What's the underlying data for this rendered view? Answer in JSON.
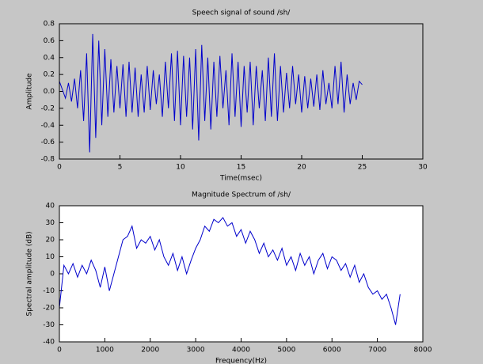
{
  "chart_data": [
    {
      "type": "line",
      "title": "Speech signal of sound /sh/",
      "x_label": "Time(msec)",
      "y_label": "Amplitude",
      "background": "#c6c6c6",
      "xlim": [
        0,
        30
      ],
      "xticks": [
        0,
        5,
        10,
        15,
        20,
        25,
        30
      ],
      "ylim": [
        -0.8,
        0.8
      ],
      "yticks": [
        -0.8,
        -0.6,
        -0.4,
        -0.2,
        {
          "value": 0,
          "label": "0.0"
        },
        0.2,
        0.4,
        0.6,
        0.8
      ],
      "x": [
        0,
        0.25,
        0.5,
        0.75,
        1,
        1.25,
        1.5,
        1.75,
        2,
        2.25,
        2.5,
        2.75,
        3,
        3.25,
        3.5,
        3.75,
        4,
        4.25,
        4.5,
        4.75,
        5,
        5.25,
        5.5,
        5.75,
        6,
        6.25,
        6.5,
        6.75,
        7,
        7.25,
        7.5,
        7.75,
        8,
        8.25,
        8.5,
        8.75,
        9,
        9.25,
        9.5,
        9.75,
        10,
        10.25,
        10.5,
        10.75,
        11,
        11.25,
        11.5,
        11.75,
        12,
        12.25,
        12.5,
        12.75,
        13,
        13.25,
        13.5,
        13.75,
        14,
        14.25,
        14.5,
        14.75,
        15,
        15.25,
        15.5,
        15.75,
        16,
        16.25,
        16.5,
        16.75,
        17,
        17.25,
        17.5,
        17.75,
        18,
        18.25,
        18.5,
        18.75,
        19,
        19.25,
        19.5,
        19.75,
        20,
        20.25,
        20.5,
        20.75,
        21,
        21.25,
        21.5,
        21.75,
        22,
        22.25,
        22.5,
        22.75,
        23,
        23.25,
        23.5,
        23.75,
        24,
        24.25,
        24.5,
        24.75,
        25
      ],
      "series": [
        {
          "color": "#0000cc",
          "values": [
            0.12,
            0.02,
            -0.08,
            0.1,
            -0.12,
            0.15,
            -0.2,
            0.25,
            -0.35,
            0.45,
            -0.72,
            0.68,
            -0.55,
            0.6,
            -0.4,
            0.5,
            -0.3,
            0.38,
            -0.25,
            0.3,
            -0.2,
            0.32,
            -0.3,
            0.35,
            -0.25,
            0.28,
            -0.3,
            0.2,
            -0.25,
            0.3,
            -0.22,
            0.25,
            -0.15,
            0.2,
            -0.3,
            0.35,
            -0.2,
            0.45,
            -0.35,
            0.48,
            -0.4,
            0.42,
            -0.3,
            0.4,
            -0.45,
            0.5,
            -0.58,
            0.55,
            -0.35,
            0.4,
            -0.45,
            0.35,
            -0.3,
            0.42,
            -0.2,
            0.25,
            -0.4,
            0.45,
            -0.3,
            0.35,
            -0.42,
            0.3,
            -0.25,
            0.35,
            -0.4,
            0.3,
            -0.2,
            0.25,
            -0.35,
            0.4,
            -0.3,
            0.45,
            -0.35,
            0.3,
            -0.25,
            0.22,
            -0.2,
            0.3,
            -0.15,
            0.2,
            -0.25,
            0.18,
            -0.2,
            0.15,
            -0.18,
            0.2,
            -0.22,
            0.25,
            -0.15,
            0.1,
            -0.2,
            0.3,
            -0.15,
            0.35,
            -0.25,
            0.2,
            -0.15,
            0.1,
            -0.1,
            0.12,
            0.08
          ]
        }
      ]
    },
    {
      "type": "line",
      "title": "Magnitude Spectrum of /sh/",
      "x_label": "Frequency(Hz)",
      "y_label": "Spectral amplitude (dB)",
      "background": "#ffffff",
      "xlim": [
        0,
        8000
      ],
      "xticks": [
        0,
        1000,
        2000,
        3000,
        4000,
        5000,
        6000,
        7000,
        8000
      ],
      "ylim": [
        -40,
        40
      ],
      "yticks": [
        -40,
        -30,
        -20,
        -10,
        0,
        10,
        20,
        30,
        40
      ],
      "x": [
        0,
        100,
        200,
        300,
        400,
        500,
        600,
        700,
        800,
        900,
        1000,
        1100,
        1200,
        1300,
        1400,
        1500,
        1600,
        1700,
        1800,
        1900,
        2000,
        2100,
        2200,
        2300,
        2400,
        2500,
        2600,
        2700,
        2800,
        2900,
        3000,
        3100,
        3200,
        3300,
        3400,
        3500,
        3600,
        3700,
        3800,
        3900,
        4000,
        4100,
        4200,
        4300,
        4400,
        4500,
        4600,
        4700,
        4800,
        4900,
        5000,
        5100,
        5200,
        5300,
        5400,
        5500,
        5600,
        5700,
        5800,
        5900,
        6000,
        6100,
        6200,
        6300,
        6400,
        6500,
        6600,
        6700,
        6800,
        6900,
        7000,
        7100,
        7200,
        7300,
        7400,
        7500
      ],
      "series": [
        {
          "color": "#0000cc",
          "values": [
            -20,
            5,
            0,
            6,
            -2,
            5,
            0,
            8,
            2,
            -8,
            4,
            -10,
            0,
            10,
            20,
            22,
            28,
            15,
            20,
            18,
            22,
            14,
            20,
            10,
            5,
            12,
            2,
            10,
            0,
            8,
            15,
            20,
            28,
            25,
            32,
            30,
            33,
            28,
            30,
            22,
            26,
            18,
            25,
            20,
            12,
            18,
            10,
            14,
            8,
            15,
            5,
            10,
            2,
            12,
            5,
            10,
            0,
            8,
            12,
            3,
            10,
            8,
            2,
            6,
            -2,
            5,
            -5,
            0,
            -8,
            -12,
            -10,
            -15,
            -12,
            -20,
            -30,
            -12
          ]
        }
      ]
    }
  ]
}
